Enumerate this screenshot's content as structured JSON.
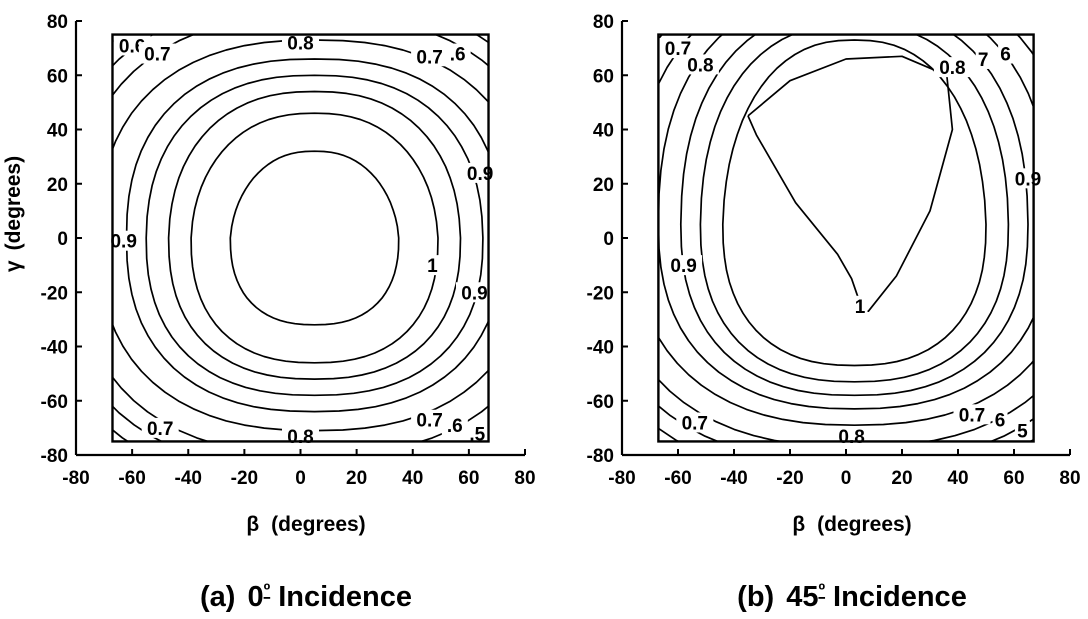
{
  "chart_data": [
    {
      "type": "contour",
      "panel": "a",
      "caption_prefix": "(a)",
      "caption_angle": "0",
      "caption_degree": "º",
      "caption_suffix": "Incidence",
      "xlabel_symbol": "β",
      "xlabel_text": "(degrees)",
      "ylabel_symbol": "γ",
      "ylabel_text": "(degrees)",
      "xlim": [
        -80,
        80
      ],
      "ylim": [
        -80,
        80
      ],
      "x_ticks": [
        -80,
        -60,
        -40,
        -20,
        0,
        20,
        40,
        60,
        80
      ],
      "y_ticks": [
        -80,
        -60,
        -40,
        -20,
        0,
        20,
        40,
        60,
        80
      ],
      "x_tick_labels": [
        "-80",
        "-60",
        "-40",
        "-20",
        "0",
        "20",
        "40",
        "60",
        "80"
      ],
      "y_tick_labels": [
        "-80",
        "-60",
        "-40",
        "-20",
        "0",
        "20",
        "40",
        "60",
        "80"
      ],
      "data_region": {
        "x": [
          -67,
          67
        ],
        "y": [
          -75,
          75
        ]
      },
      "center": [
        5,
        0
      ],
      "levels": [
        {
          "value": 1.0,
          "label": "1",
          "rx": 30,
          "ry_top": 32,
          "ry_bottom": 32,
          "top_squeeze": 0.15,
          "rot": 0
        },
        {
          "value": 0.97,
          "rx": 44,
          "ry_top": 46,
          "ry_bottom": 46,
          "top_squeeze": 0.1,
          "rot": 0
        },
        {
          "value": 0.95,
          "rx": 52,
          "ry_top": 54,
          "ry_bottom": 52,
          "top_squeeze": 0.06,
          "rot": 0
        },
        {
          "value": 0.9,
          "label": "0.9",
          "rx": 60,
          "ry_top": 60,
          "ry_bottom": 58,
          "top_squeeze": 0.03,
          "rot": 0
        },
        {
          "value": 0.85,
          "rx": 67,
          "ry_top": 66,
          "ry_bottom": 64,
          "top_squeeze": 0.0,
          "rot": 0
        },
        {
          "value": 0.8,
          "label": "0.8",
          "rx": 77,
          "ry_top": 73,
          "ry_bottom": 71,
          "top_squeeze": 0.0,
          "rot": 0
        },
        {
          "value": 0.75,
          "rx": 86,
          "ry_top": 82,
          "ry_bottom": 80,
          "top_squeeze": 0.0,
          "rot": 0
        },
        {
          "value": 0.7,
          "label": "0.7",
          "rx": 93,
          "ry_top": 88,
          "ry_bottom": 86,
          "top_squeeze": 0.0,
          "rot": 0
        },
        {
          "value": 0.65,
          "rx": 99,
          "ry_top": 94,
          "ry_bottom": 92,
          "top_squeeze": 0.0,
          "rot": 0
        },
        {
          "value": 0.6,
          "label": "0.6",
          "rx": 104,
          "ry_top": 99,
          "ry_bottom": 97,
          "top_squeeze": 0.0,
          "rot": 0
        },
        {
          "value": 0.55,
          "rx": 109,
          "ry_top": 104,
          "ry_bottom": 102,
          "top_squeeze": 0.0,
          "rot": 0
        },
        {
          "value": 0.5,
          "label": "0.5",
          "rx": 114,
          "ry_top": 108,
          "ry_bottom": 106,
          "top_squeeze": 0.0,
          "rot": 0
        }
      ],
      "contour_labels": [
        {
          "text": "0.6",
          "x": -60,
          "y": 71
        },
        {
          "text": "0.7",
          "x": -51,
          "y": 68
        },
        {
          "text": "0.8",
          "x": 0,
          "y": 72
        },
        {
          "text": "0.7",
          "x": 46,
          "y": 67
        },
        {
          "text": ".6",
          "x": 56,
          "y": 68
        },
        {
          "text": "0.9",
          "x": 64,
          "y": 24
        },
        {
          "text": "0.9",
          "x": -63,
          "y": -1
        },
        {
          "text": "1",
          "x": 47,
          "y": -10
        },
        {
          "text": "0.9",
          "x": 62,
          "y": -20
        },
        {
          "text": "0.7",
          "x": -50,
          "y": -70
        },
        {
          "text": "0.8",
          "x": 0,
          "y": -73
        },
        {
          "text": "0.7",
          "x": 46,
          "y": -67
        },
        {
          "text": ".6",
          "x": 55,
          "y": -69
        },
        {
          "text": ".5",
          "x": 63,
          "y": -72
        }
      ]
    },
    {
      "type": "contour",
      "panel": "b",
      "caption_prefix": "(b)",
      "caption_angle": "45",
      "caption_degree": "º",
      "caption_suffix": "Incidence",
      "xlabel_symbol": "β",
      "xlabel_text": "(degrees)",
      "xlim": [
        -80,
        80
      ],
      "ylim": [
        -80,
        80
      ],
      "x_ticks": [
        -80,
        -60,
        -40,
        -20,
        0,
        20,
        40,
        60,
        80
      ],
      "y_ticks": [
        -80,
        -60,
        -40,
        -20,
        0,
        20,
        40,
        60,
        80
      ],
      "x_tick_labels": [
        "-80",
        "-60",
        "-40",
        "-20",
        "0",
        "20",
        "40",
        "60",
        "80"
      ],
      "y_tick_labels": [
        "-80",
        "-60",
        "-40",
        "-20",
        "0",
        "20",
        "40",
        "60",
        "80"
      ],
      "data_region": {
        "x": [
          -67,
          67
        ],
        "y": [
          -75,
          75
        ]
      },
      "center": [
        3,
        5
      ],
      "inner_contour": [
        [
          -35,
          45
        ],
        [
          -20,
          58
        ],
        [
          0,
          66
        ],
        [
          20,
          67
        ],
        [
          36,
          60
        ],
        [
          38,
          40
        ],
        [
          30,
          10
        ],
        [
          18,
          -14
        ],
        [
          8,
          -27
        ],
        [
          6,
          -27
        ],
        [
          2,
          -15
        ],
        [
          -3,
          -6
        ],
        [
          -18,
          13
        ],
        [
          -32,
          38
        ],
        [
          -35,
          45
        ]
      ],
      "levels": [
        {
          "value": 0.97,
          "rx": 47,
          "ry_top": 68,
          "ry_bottom": 52,
          "top_squeeze": 0.08,
          "rot": 0
        },
        {
          "value": 0.95,
          "rx": 55,
          "ry_top": 74,
          "ry_bottom": 58,
          "top_squeeze": 0.04,
          "rot": 0
        },
        {
          "value": 0.9,
          "label": "0.9",
          "rx": 62,
          "ry_top": 80,
          "ry_bottom": 63,
          "top_squeeze": 0.02,
          "rot": 0
        },
        {
          "value": 0.85,
          "rx": 70,
          "ry_top": 86,
          "ry_bottom": 68,
          "top_squeeze": 0.0,
          "rot": 0
        },
        {
          "value": 0.8,
          "label": "0.8",
          "rx": 79,
          "ry_top": 92,
          "ry_bottom": 74,
          "top_squeeze": 0.0,
          "rot": 0
        },
        {
          "value": 0.75,
          "rx": 88,
          "ry_top": 98,
          "ry_bottom": 82,
          "top_squeeze": 0.0,
          "rot": 0
        },
        {
          "value": 0.7,
          "label": "0.7",
          "rx": 95,
          "ry_top": 103,
          "ry_bottom": 88,
          "top_squeeze": 0.0,
          "rot": 0
        },
        {
          "value": 0.65,
          "rx": 101,
          "ry_top": 108,
          "ry_bottom": 94,
          "top_squeeze": 0.0,
          "rot": 0
        },
        {
          "value": 0.6,
          "label": "0.6",
          "rx": 106,
          "ry_top": 113,
          "ry_bottom": 99,
          "top_squeeze": 0.0,
          "rot": 0
        },
        {
          "value": 0.55,
          "rx": 111,
          "ry_top": 118,
          "ry_bottom": 104,
          "top_squeeze": 0.0,
          "rot": 0
        },
        {
          "value": 0.5,
          "label": "0.5",
          "rx": 116,
          "ry_top": 122,
          "ry_bottom": 108,
          "top_squeeze": 0.0,
          "rot": 0
        }
      ],
      "contour_labels": [
        {
          "text": "0.7",
          "x": -60,
          "y": 70
        },
        {
          "text": "0.8",
          "x": -52,
          "y": 64
        },
        {
          "text": "0.8",
          "x": 38,
          "y": 63
        },
        {
          "text": "7",
          "x": 49,
          "y": 66
        },
        {
          "text": "6",
          "x": 57,
          "y": 68
        },
        {
          "text": "0.9",
          "x": 65,
          "y": 22
        },
        {
          "text": "0.9",
          "x": -58,
          "y": -10
        },
        {
          "text": "1",
          "x": 5,
          "y": -25
        },
        {
          "text": "0.7",
          "x": -54,
          "y": -68
        },
        {
          "text": "0.8",
          "x": 2,
          "y": -73
        },
        {
          "text": "0.7",
          "x": 45,
          "y": -65
        },
        {
          "text": "6",
          "x": 55,
          "y": -67
        },
        {
          "text": "5",
          "x": 63,
          "y": -71
        }
      ]
    }
  ]
}
